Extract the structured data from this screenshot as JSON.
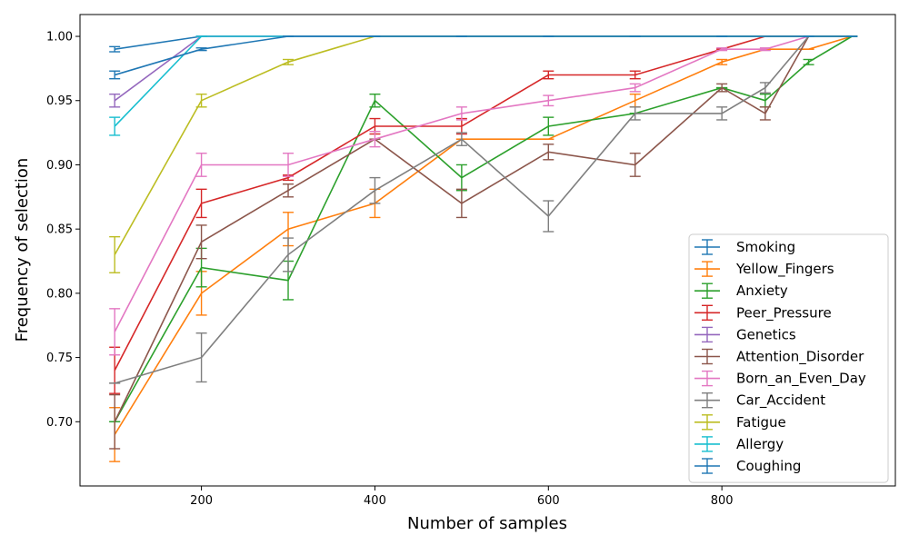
{
  "chart_data": {
    "type": "line",
    "title": "",
    "xlabel": "Number of samples",
    "ylabel": "Frequency of selection",
    "xlim": [
      60,
      1000
    ],
    "ylim": [
      0.65,
      1.017
    ],
    "x_ticks": [
      "200",
      "400",
      "600",
      "800"
    ],
    "y_ticks": [
      "0.70",
      "0.75",
      "0.80",
      "0.85",
      "0.90",
      "0.95",
      "1.00"
    ],
    "grid": false,
    "legend_position": "lower-right",
    "series": [
      {
        "name": "Smoking",
        "color": "#1f77b4",
        "x": [
          100,
          200,
          300,
          400,
          500,
          600,
          700,
          800,
          900,
          950
        ],
        "y": [
          0.99,
          1.0,
          1.0,
          1.0,
          1.0,
          1.0,
          1.0,
          1.0,
          1.0,
          1.0
        ],
        "err": [
          0.002,
          0,
          0,
          0,
          0,
          0,
          0,
          0,
          0,
          0
        ]
      },
      {
        "name": "Yellow_Fingers",
        "color": "#ff7f0e",
        "x": [
          100,
          200,
          300,
          400,
          500,
          600,
          700,
          800,
          850,
          900,
          950
        ],
        "y": [
          0.69,
          0.8,
          0.85,
          0.87,
          0.92,
          0.92,
          0.95,
          0.98,
          0.99,
          0.99,
          1.0
        ],
        "err": [
          0.021,
          0.017,
          0.013,
          0.011,
          0,
          0,
          0.005,
          0.002,
          0,
          0,
          0
        ]
      },
      {
        "name": "Anxiety",
        "color": "#2ca02c",
        "x": [
          100,
          200,
          300,
          400,
          500,
          600,
          700,
          800,
          850,
          900,
          950
        ],
        "y": [
          0.7,
          0.82,
          0.81,
          0.95,
          0.89,
          0.93,
          0.94,
          0.96,
          0.95,
          0.98,
          1.0
        ],
        "err": [
          0,
          0.015,
          0.015,
          0.005,
          0.01,
          0.007,
          0,
          0,
          0.005,
          0.002,
          0
        ]
      },
      {
        "name": "Peer_Pressure",
        "color": "#d62728",
        "x": [
          100,
          200,
          300,
          400,
          500,
          600,
          700,
          800,
          850,
          900,
          950
        ],
        "y": [
          0.74,
          0.87,
          0.89,
          0.93,
          0.93,
          0.97,
          0.97,
          0.99,
          1.0,
          1.0,
          1.0
        ],
        "err": [
          0.018,
          0.011,
          0.002,
          0.006,
          0.006,
          0.003,
          0.003,
          0,
          0,
          0,
          0
        ]
      },
      {
        "name": "Genetics",
        "color": "#9467bd",
        "x": [
          100,
          200,
          300,
          400,
          500,
          600,
          700,
          800,
          900,
          950
        ],
        "y": [
          0.95,
          1.0,
          1.0,
          1.0,
          1.0,
          1.0,
          1.0,
          1.0,
          1.0,
          1.0
        ],
        "err": [
          0.005,
          0,
          0,
          0,
          0,
          0,
          0,
          0,
          0,
          0
        ]
      },
      {
        "name": "Attention_Disorder",
        "color": "#8c564b",
        "x": [
          100,
          200,
          300,
          400,
          500,
          600,
          700,
          800,
          850,
          900,
          950
        ],
        "y": [
          0.7,
          0.84,
          0.88,
          0.92,
          0.87,
          0.91,
          0.9,
          0.96,
          0.94,
          1.0,
          1.0
        ],
        "err": [
          0.021,
          0.013,
          0.005,
          0,
          0.011,
          0.006,
          0.009,
          0.003,
          0.005,
          0,
          0
        ]
      },
      {
        "name": "Born_an_Even_Day",
        "color": "#e377c2",
        "x": [
          100,
          200,
          300,
          400,
          500,
          600,
          700,
          800,
          850,
          900,
          950
        ],
        "y": [
          0.77,
          0.9,
          0.9,
          0.92,
          0.94,
          0.95,
          0.96,
          0.99,
          0.99,
          1.0,
          1.0
        ],
        "err": [
          0.018,
          0.009,
          0.009,
          0.006,
          0.005,
          0.004,
          0.003,
          0.001,
          0.001,
          0,
          0
        ]
      },
      {
        "name": "Car_Accident",
        "color": "#7f7f7f",
        "x": [
          100,
          200,
          300,
          400,
          500,
          600,
          700,
          800,
          850,
          900,
          950
        ],
        "y": [
          0.73,
          0.75,
          0.83,
          0.88,
          0.92,
          0.86,
          0.94,
          0.94,
          0.96,
          1.0,
          1.0
        ],
        "err": [
          0,
          0.019,
          0.013,
          0.01,
          0.005,
          0.012,
          0.005,
          0.005,
          0.004,
          0,
          0
        ]
      },
      {
        "name": "Fatigue",
        "color": "#bcbd22",
        "x": [
          100,
          200,
          300,
          400,
          500,
          600,
          700,
          800,
          900,
          950
        ],
        "y": [
          0.83,
          0.95,
          0.98,
          1.0,
          1.0,
          1.0,
          1.0,
          1.0,
          1.0,
          1.0
        ],
        "err": [
          0.014,
          0.005,
          0.002,
          0,
          0,
          0,
          0,
          0,
          0,
          0
        ]
      },
      {
        "name": "Allergy",
        "color": "#17becf",
        "x": [
          100,
          200,
          300,
          400,
          500,
          600,
          700,
          800,
          900,
          950
        ],
        "y": [
          0.93,
          1.0,
          1.0,
          1.0,
          1.0,
          1.0,
          1.0,
          1.0,
          1.0,
          1.0
        ],
        "err": [
          0.007,
          0,
          0,
          0,
          0,
          0,
          0,
          0,
          0,
          0
        ]
      },
      {
        "name": "Coughing",
        "color": "#1f77b4",
        "x": [
          100,
          200,
          300,
          400,
          500,
          600,
          700,
          800,
          900,
          950
        ],
        "y": [
          0.97,
          0.99,
          1.0,
          1.0,
          1.0,
          1.0,
          1.0,
          1.0,
          1.0,
          1.0
        ],
        "err": [
          0.003,
          0.001,
          0,
          0,
          0,
          0,
          0,
          0,
          0,
          0
        ]
      }
    ]
  }
}
